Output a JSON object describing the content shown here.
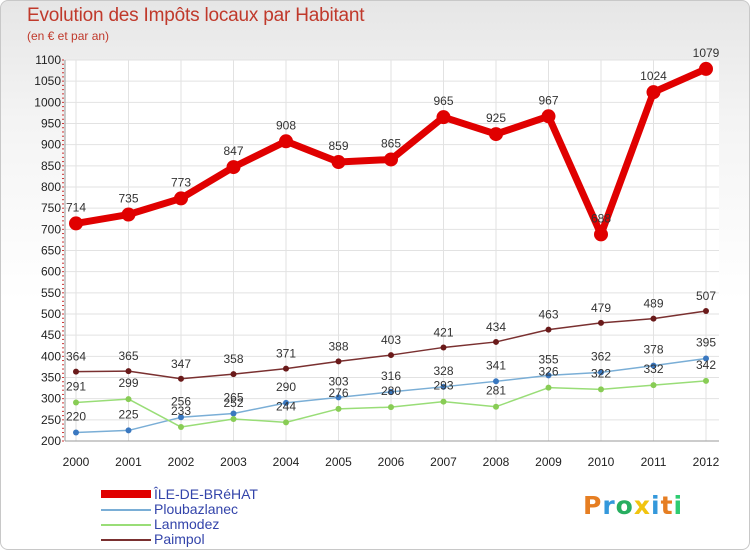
{
  "title": "Evolution des Impôts locaux par Habitant",
  "subtitle": "(en € et par an)",
  "logo": {
    "text": "Proxiti",
    "colors": [
      "#e67e22",
      "#3498db",
      "#27ae60",
      "#f1c40f",
      "#3498db",
      "#e67e22",
      "#2ecc71"
    ]
  },
  "chart_data": {
    "type": "line",
    "title": "Evolution des Impôts locaux par Habitant",
    "subtitle": "(en € et par an)",
    "x": [
      "2000",
      "2001",
      "2002",
      "2003",
      "2004",
      "2005",
      "2006",
      "2007",
      "2008",
      "2009",
      "2010",
      "2011",
      "2012"
    ],
    "ylim": [
      200,
      1100
    ],
    "yticks": [
      200,
      250,
      300,
      350,
      400,
      450,
      500,
      550,
      600,
      650,
      700,
      750,
      800,
      850,
      900,
      950,
      1000,
      1050,
      1100
    ],
    "legend_position": "bottom-left",
    "series": [
      {
        "name": "ÎLE-DE-BRéHAT",
        "color": "#e00000",
        "marker": "#e00000",
        "values": [
          714,
          735,
          773,
          847,
          908,
          859,
          865,
          965,
          925,
          967,
          688,
          1024,
          1079
        ]
      },
      {
        "name": "Ploubazlanec",
        "color": "#7aaed6",
        "marker": "#3a78c0",
        "values": [
          220,
          225,
          256,
          265,
          290,
          303,
          316,
          328,
          341,
          355,
          362,
          378,
          395
        ]
      },
      {
        "name": "Lanmodez",
        "color": "#99dd77",
        "marker": "#88cc55",
        "values": [
          291,
          299,
          233,
          252,
          244,
          276,
          280,
          293,
          281,
          326,
          322,
          332,
          342
        ]
      },
      {
        "name": "Paimpol",
        "color": "#7a3030",
        "marker": "#6a1a1a",
        "values": [
          364,
          365,
          347,
          358,
          371,
          388,
          403,
          421,
          434,
          463,
          479,
          489,
          507
        ]
      }
    ]
  }
}
